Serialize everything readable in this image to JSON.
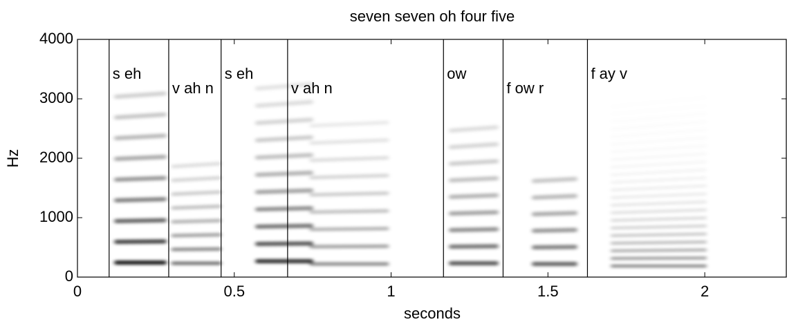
{
  "chart_data": {
    "type": "spectrogram",
    "title": "seven seven oh four five",
    "x_label": "seconds",
    "y_label": "Hz",
    "xlim": [
      0,
      2.26
    ],
    "ylim": [
      0,
      4000
    ],
    "xticks": [
      0,
      0.5,
      1,
      1.5,
      2
    ],
    "yticks": [
      0,
      1000,
      2000,
      3000,
      4000
    ],
    "segments": [
      {
        "start": 0.101,
        "label": "s eh"
      },
      {
        "start": 0.291,
        "label": "v ah n"
      },
      {
        "start": 0.458,
        "label": "s eh"
      },
      {
        "start": 0.67,
        "label": "v ah n"
      },
      {
        "start": 1.167,
        "label": "ow"
      },
      {
        "start": 1.357,
        "label": "f ow r"
      },
      {
        "start": 1.626,
        "label": "f ay v"
      }
    ]
  }
}
